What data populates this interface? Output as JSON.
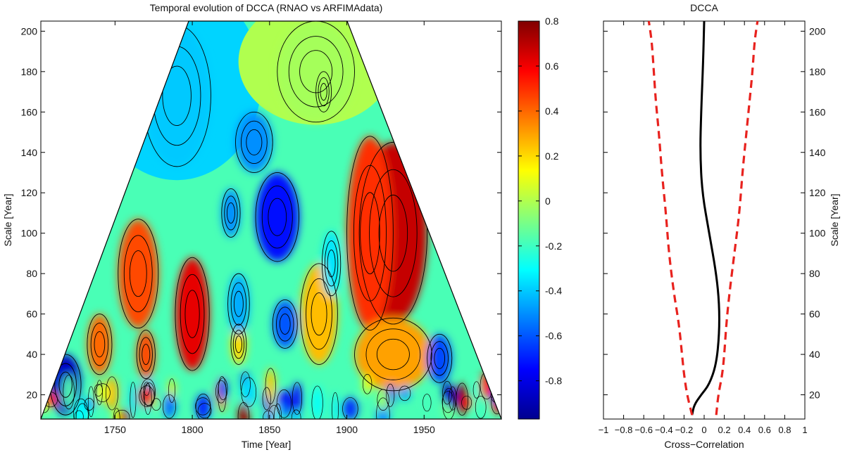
{
  "left_chart": {
    "title": "Temporal evolution of DCCA (RNAO vs ARFIMAdata)",
    "xlabel": "Time [Year]",
    "ylabel": "Scale [Year]",
    "xticks": [
      "1750",
      "1800",
      "1850",
      "1900",
      "1950"
    ],
    "yticks": [
      "20",
      "40",
      "60",
      "80",
      "100",
      "120",
      "140",
      "160",
      "180",
      "200"
    ]
  },
  "colorbar": {
    "ticks": [
      "0.8",
      "0.6",
      "0.4",
      "0.2",
      "0",
      "-0.2",
      "-0.4",
      "-0.6",
      "-0.8"
    ]
  },
  "right_chart": {
    "title": "DCCA",
    "xlabel": "Cross−Correlation",
    "ylabel": "Scale [Year]",
    "xticks": [
      "−1",
      "−0.8",
      "−0.6",
      "−0.4",
      "−0.2",
      "0",
      "0.2",
      "0.4",
      "0.6",
      "0.8",
      "1"
    ],
    "yticks": [
      "20",
      "40",
      "60",
      "80",
      "100",
      "120",
      "140",
      "160",
      "180",
      "200"
    ]
  },
  "chart_data": [
    {
      "type": "heatmap",
      "title": "Temporal evolution of DCCA (RNAO vs ARFIMAdata)",
      "xlabel": "Time [Year]",
      "ylabel": "Scale [Year]",
      "xlim": [
        1702,
        2000
      ],
      "ylim": [
        8,
        205
      ],
      "colorbar_range": [
        -0.97,
        0.8
      ],
      "colorbar_ticks": [
        0.8,
        0.6,
        0.4,
        0.2,
        0,
        -0.2,
        -0.4,
        -0.6,
        -0.8
      ],
      "colormap": "jet",
      "shape": "triangle",
      "regions": [
        {
          "x": 1765,
          "y": 80,
          "rx": 13,
          "ry": 27,
          "value": 0.45
        },
        {
          "x": 1800,
          "y": 60,
          "rx": 11,
          "ry": 28,
          "value": 0.62
        },
        {
          "x": 1740,
          "y": 45,
          "rx": 8,
          "ry": 15,
          "value": 0.4
        },
        {
          "x": 1770,
          "y": 40,
          "rx": 6,
          "ry": 12,
          "value": 0.45
        },
        {
          "x": 1830,
          "y": 45,
          "rx": 5,
          "ry": 10,
          "value": 0.2
        },
        {
          "x": 1855,
          "y": 108,
          "rx": 14,
          "ry": 22,
          "value": -0.72
        },
        {
          "x": 1840,
          "y": 145,
          "rx": 12,
          "ry": 15,
          "value": -0.5
        },
        {
          "x": 1825,
          "y": 110,
          "rx": 6,
          "ry": 12,
          "value": -0.5
        },
        {
          "x": 1860,
          "y": 55,
          "rx": 8,
          "ry": 12,
          "value": -0.6
        },
        {
          "x": 1830,
          "y": 65,
          "rx": 7,
          "ry": 15,
          "value": -0.45
        },
        {
          "x": 1882,
          "y": 60,
          "rx": 12,
          "ry": 25,
          "value": 0.25
        },
        {
          "x": 1890,
          "y": 85,
          "rx": 6,
          "ry": 16,
          "value": -0.35
        },
        {
          "x": 1885,
          "y": 170,
          "rx": 5,
          "ry": 10,
          "value": 0.22
        },
        {
          "x": 1880,
          "y": 180,
          "rx": 25,
          "ry": 25,
          "value": -0.02
        },
        {
          "x": 1930,
          "y": 100,
          "rx": 22,
          "ry": 45,
          "value": 0.68
        },
        {
          "x": 1915,
          "y": 100,
          "rx": 15,
          "ry": 48,
          "value": 0.5
        },
        {
          "x": 1930,
          "y": 40,
          "rx": 25,
          "ry": 18,
          "value": 0.3
        },
        {
          "x": 1960,
          "y": 38,
          "rx": 8,
          "ry": 12,
          "value": -0.62
        },
        {
          "x": 1790,
          "y": 168,
          "rx": 22,
          "ry": 35,
          "value": -0.4
        },
        {
          "x": 1718,
          "y": 25,
          "rx": 10,
          "ry": 15,
          "value": -0.85
        }
      ]
    },
    {
      "type": "line",
      "title": "DCCA",
      "xlabel": "Cross−Correlation",
      "ylabel": "Scale [Year]",
      "xlim": [
        -1,
        1
      ],
      "ylim": [
        8,
        205
      ],
      "series": [
        {
          "style": "solid",
          "color": "#000000",
          "x": [
            -0.12,
            -0.1,
            -0.03,
            0.05,
            0.12,
            0.15,
            0.15,
            0.12,
            0.05,
            -0.02,
            -0.04,
            -0.03,
            -0.01,
            0.0
          ],
          "y": [
            10,
            15,
            20,
            25,
            35,
            50,
            65,
            80,
            100,
            120,
            140,
            160,
            185,
            205
          ]
        },
        {
          "style": "dashed",
          "color": "#e8221e",
          "x": [
            -0.12,
            -0.17,
            -0.2,
            -0.22,
            -0.25,
            -0.3,
            -0.35,
            -0.38,
            -0.42,
            -0.45,
            -0.48,
            -0.5,
            -0.52,
            -0.55
          ],
          "y": [
            10,
            20,
            30,
            40,
            55,
            70,
            90,
            110,
            130,
            150,
            165,
            180,
            195,
            205
          ]
        },
        {
          "style": "dashed",
          "color": "#e8221e",
          "x": [
            0.12,
            0.14,
            0.18,
            0.2,
            0.22,
            0.25,
            0.3,
            0.35,
            0.38,
            0.42,
            0.45,
            0.48,
            0.5,
            0.53
          ],
          "y": [
            10,
            20,
            30,
            40,
            55,
            70,
            90,
            110,
            130,
            150,
            165,
            180,
            195,
            205
          ]
        }
      ]
    }
  ]
}
